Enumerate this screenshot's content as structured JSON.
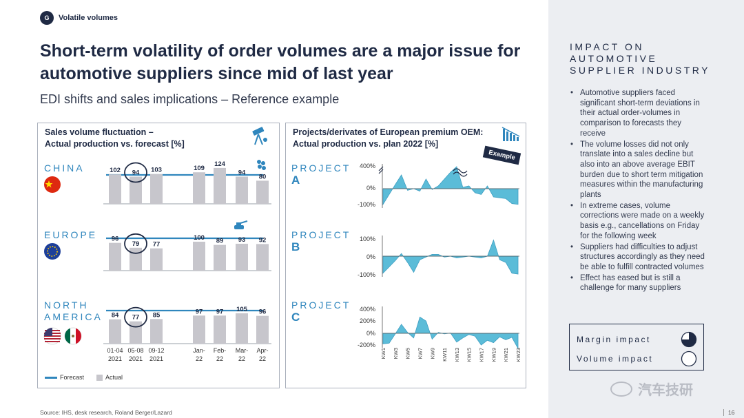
{
  "header": {
    "tag_letter": "G",
    "tag_text": "Volatile volumes",
    "title": "Short-term volatility of order volumes are a major issue for automotive suppliers since mid of last year",
    "subtitle": "EDI shifts and sales implications – Reference example"
  },
  "left_panel": {
    "title_line1": "Sales volume fluctuation –",
    "title_line2": "Actual production vs. forecast [%]",
    "regions": [
      {
        "label_lines": [
          "CHINA"
        ],
        "flags": [
          "china"
        ]
      },
      {
        "label_lines": [
          "EUROPE"
        ],
        "flags": [
          "eu"
        ]
      },
      {
        "label_lines": [
          "NORTH",
          "AMERICA"
        ],
        "flags": [
          "usa",
          "mexico"
        ]
      }
    ],
    "legend_forecast": "Forecast",
    "legend_actual": "Actual"
  },
  "right_panel": {
    "title_line1": "Projects/derivates of European premium OEM:",
    "title_line2": "Actual production vs. plan 2022 [%]",
    "badge": "Example",
    "projects": [
      {
        "word": "PROJECT",
        "letter": "A",
        "ticks": [
          "400%",
          "0%",
          "-100%"
        ]
      },
      {
        "word": "PROJECT",
        "letter": "B",
        "ticks": [
          "100%",
          "0%",
          "-100%"
        ]
      },
      {
        "word": "PROJECT",
        "letter": "C",
        "ticks": [
          "400%",
          "200%",
          "0%",
          "-200%"
        ]
      }
    ]
  },
  "sidebar": {
    "heading_lines": [
      "IMPACT ON",
      "AUTOMOTIVE",
      "SUPPLIER INDUSTRY"
    ],
    "bullets": [
      "Automotive suppliers faced significant short-term deviations in their actual order-volumes in comparison to forecasts they receive",
      "The volume losses did not only translate into a sales decline but also into an above average EBIT burden due to short term mitigation measures within the manufacturing plants",
      "In extreme cases, volume corrections were made on a weekly basis e.g., cancellations on Friday for the following week",
      "Suppliers had difficulties to adjust structures accordingly as they need be able to fulfill contracted volumes",
      "Effect has eased but is still a challenge for many suppliers"
    ],
    "margin_impact": "Margin impact",
    "volume_impact": "Volume impact",
    "margin_level": 0.75,
    "volume_level": 0
  },
  "footer": {
    "source": "Source: IHS, desk research, Roland Berger/Lazard",
    "page": "16",
    "watermark": "汽车技研"
  },
  "colors": {
    "navy": "#1f2a44",
    "accent_blue": "#2f86bd",
    "area_fill": "#5bbcd8",
    "bar_gray": "#c7c6cc"
  },
  "chart_data": [
    {
      "type": "bar",
      "name_in_figure": "Sales volume fluctuation – Actual production vs. forecast [%]",
      "categories": [
        "01-04 2021",
        "05-08 2021",
        "09-12 2021",
        "Jan-22",
        "Feb-22",
        "Mar-22",
        "Apr-22"
      ],
      "series": [
        {
          "region": "CHINA",
          "values": [
            102,
            94,
            103,
            109,
            124,
            94,
            80
          ],
          "highlight_index": 1
        },
        {
          "region": "EUROPE",
          "values": [
            96,
            79,
            77,
            100,
            89,
            93,
            92
          ],
          "highlight_index": 1
        },
        {
          "region": "NORTH AMERICA",
          "values": [
            84,
            77,
            85,
            97,
            97,
            105,
            96
          ],
          "highlight_index": 1
        }
      ],
      "forecast_value": 100,
      "legend": [
        "Forecast",
        "Actual"
      ]
    },
    {
      "type": "area",
      "name_in_figure": "Projects/derivates of European premium OEM: Actual production vs. plan 2022 [%]",
      "x": [
        "KW1",
        "KW2",
        "KW3",
        "KW4",
        "KW5",
        "KW6",
        "KW7",
        "KW8",
        "KW9",
        "KW10",
        "KW11",
        "KW12",
        "KW13",
        "KW14",
        "KW15",
        "KW16",
        "KW17",
        "KW18",
        "KW19",
        "KW20",
        "KW21",
        "KW22",
        "KW23"
      ],
      "x_tick_labels": [
        "KW1",
        "KW3",
        "KW5",
        "KW7",
        "KW9",
        "KW11",
        "KW13",
        "KW15",
        "KW17",
        "KW19",
        "KW21",
        "KW23"
      ],
      "series": [
        {
          "project": "A",
          "ylim": [
            -100,
            400
          ],
          "values": [
            -95,
            -35,
            15,
            50,
            -10,
            0,
            -15,
            35,
            -5,
            10,
            35,
            60,
            400,
            5,
            10,
            -25,
            -35,
            10,
            -50,
            -55,
            -60,
            -90,
            -95
          ]
        },
        {
          "project": "B",
          "ylim": [
            -100,
            100
          ],
          "values": [
            -95,
            -60,
            -25,
            15,
            -35,
            -90,
            -20,
            -5,
            10,
            10,
            -5,
            0,
            -10,
            -5,
            0,
            -5,
            -10,
            0,
            90,
            -20,
            -35,
            -95,
            -100
          ]
        },
        {
          "project": "C",
          "ylim": [
            -200,
            400
          ],
          "values": [
            -90,
            -85,
            -5,
            150,
            15,
            -40,
            270,
            205,
            -50,
            15,
            -5,
            5,
            -75,
            -40,
            -10,
            -25,
            -100,
            -60,
            -80,
            -30,
            -55,
            -35,
            -130
          ]
        }
      ]
    }
  ]
}
